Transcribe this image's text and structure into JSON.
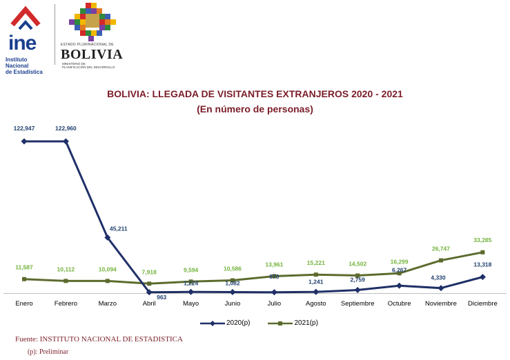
{
  "header": {
    "ine_logo": {
      "name": "ine",
      "subtitle": "Instituto Nacional\nde Estadística"
    },
    "bolivia_logo": {
      "top_text": "ESTADO PLURINACIONAL DE",
      "name": "BOLIVIA",
      "bottom_text": "MINISTERIO DE\nPLANIFICACIÓN DEL DESARROLLO"
    }
  },
  "colors": {
    "series_2020": "#1f3067",
    "series_2021": "#5c6b2d",
    "title": "#7a1d28",
    "label_2020": "#1f3f6e",
    "label_2021": "#72b33c"
  },
  "chart_data": {
    "type": "line",
    "title": "BOLIVIA: LLEGADA DE VISITANTES EXTRANJEROS 2020 - 2021",
    "subtitle": "(En número de personas)",
    "categories": [
      "Enero",
      "Febrero",
      "Marzo",
      "Abril",
      "Mayo",
      "Junio",
      "Julio",
      "Agosto",
      "Septiembre",
      "Octubre",
      "Noviembre",
      "Diciembre"
    ],
    "series": [
      {
        "name": "2020(p)",
        "marker": "diamond",
        "values": [
          122947,
          122960,
          45211,
          963,
          1224,
          1082,
          970,
          1241,
          2759,
          6267,
          4330,
          13318
        ],
        "labels": [
          "122,947",
          "122,960",
          "45,211",
          "963",
          "1,224",
          "1,082",
          "970",
          "1,241",
          "2,759",
          "6,267",
          "4,330",
          "13,318"
        ]
      },
      {
        "name": "2021(p)",
        "marker": "square",
        "values": [
          11587,
          10112,
          10094,
          7918,
          9594,
          10586,
          13961,
          15221,
          14502,
          16299,
          26747,
          33285
        ],
        "labels": [
          "11,587",
          "10,112",
          "10,094",
          "7,918",
          "9,594",
          "10,586",
          "13,961",
          "15,221",
          "14,502",
          "16,299",
          "26,747",
          "33,285"
        ]
      }
    ],
    "ylim": [
      0,
      130000
    ],
    "grid": false,
    "legend_position": "bottom"
  },
  "footer": {
    "source": "Fuente: INSTITUTO NACIONAL DE ESTADISTICA",
    "note": "(p): Preliminar"
  }
}
